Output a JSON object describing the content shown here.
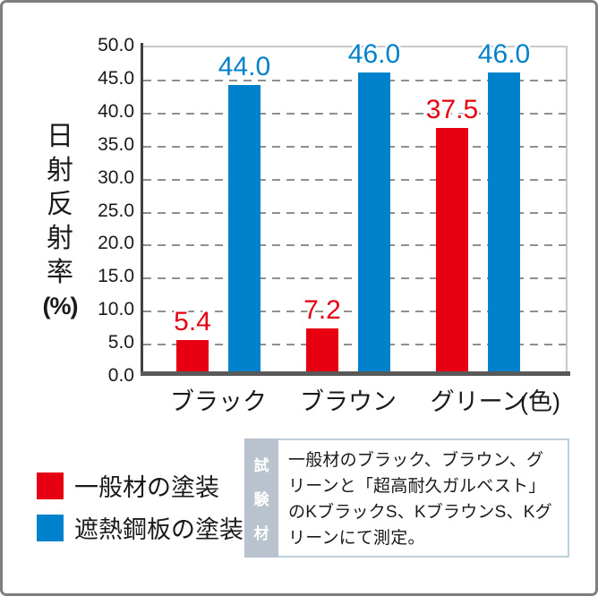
{
  "chart_data": {
    "type": "bar",
    "title": "",
    "categories": [
      "ブラック",
      "ブラウン",
      "グリーン"
    ],
    "series": [
      {
        "name": "一般材の塗装",
        "color": "#e60012",
        "values": [
          5.4,
          7.2,
          37.5
        ],
        "value_labels": [
          "5.4",
          "7.2",
          "37.5"
        ]
      },
      {
        "name": "遮熱鋼板の塗装",
        "color": "#0081cb",
        "values": [
          44.0,
          46.0,
          46.0
        ],
        "value_labels": [
          "44.0",
          "46.0",
          "46.0"
        ]
      }
    ],
    "ylabel": "日射反射率(%)",
    "ylabel_chars": [
      "日",
      "射",
      "反",
      "射",
      "率",
      "(%)"
    ],
    "xlabel_unit": "(色)",
    "ylim": [
      0,
      50
    ],
    "ytick_step": 5,
    "yticks": [
      "50.0",
      "45.0",
      "40.0",
      "35.0",
      "30.0",
      "25.0",
      "20.0",
      "15.0",
      "10.0",
      "5.0",
      "0.0"
    ],
    "grid": "horizontal-dashed",
    "legend_position": "bottom-left"
  },
  "legend": {
    "items": [
      {
        "label": "一般材の塗装",
        "color": "#e60012"
      },
      {
        "label": "遮熱鋼板の塗装",
        "color": "#0081cb"
      }
    ]
  },
  "note": {
    "side_label": "試験材",
    "side_chars": [
      "試",
      "験",
      "材"
    ],
    "text": "一般材のブラック、ブラウン、グリーンと「超高耐久ガルベスト」のKブラックS、KブラウンS、Kグリーンにて測定。"
  },
  "colors": {
    "bar_red": "#e60012",
    "bar_blue": "#0081cb",
    "axis_dark": "#404040",
    "axis_bottom": "#595959",
    "gridline": "#8f8f8f",
    "plot_border": "#c9c9c9",
    "note_side_bg": "#b9c3cd",
    "note_border": "#bccfda",
    "frame_border": "#7f7f7f",
    "text": "#1a1a1a"
  }
}
